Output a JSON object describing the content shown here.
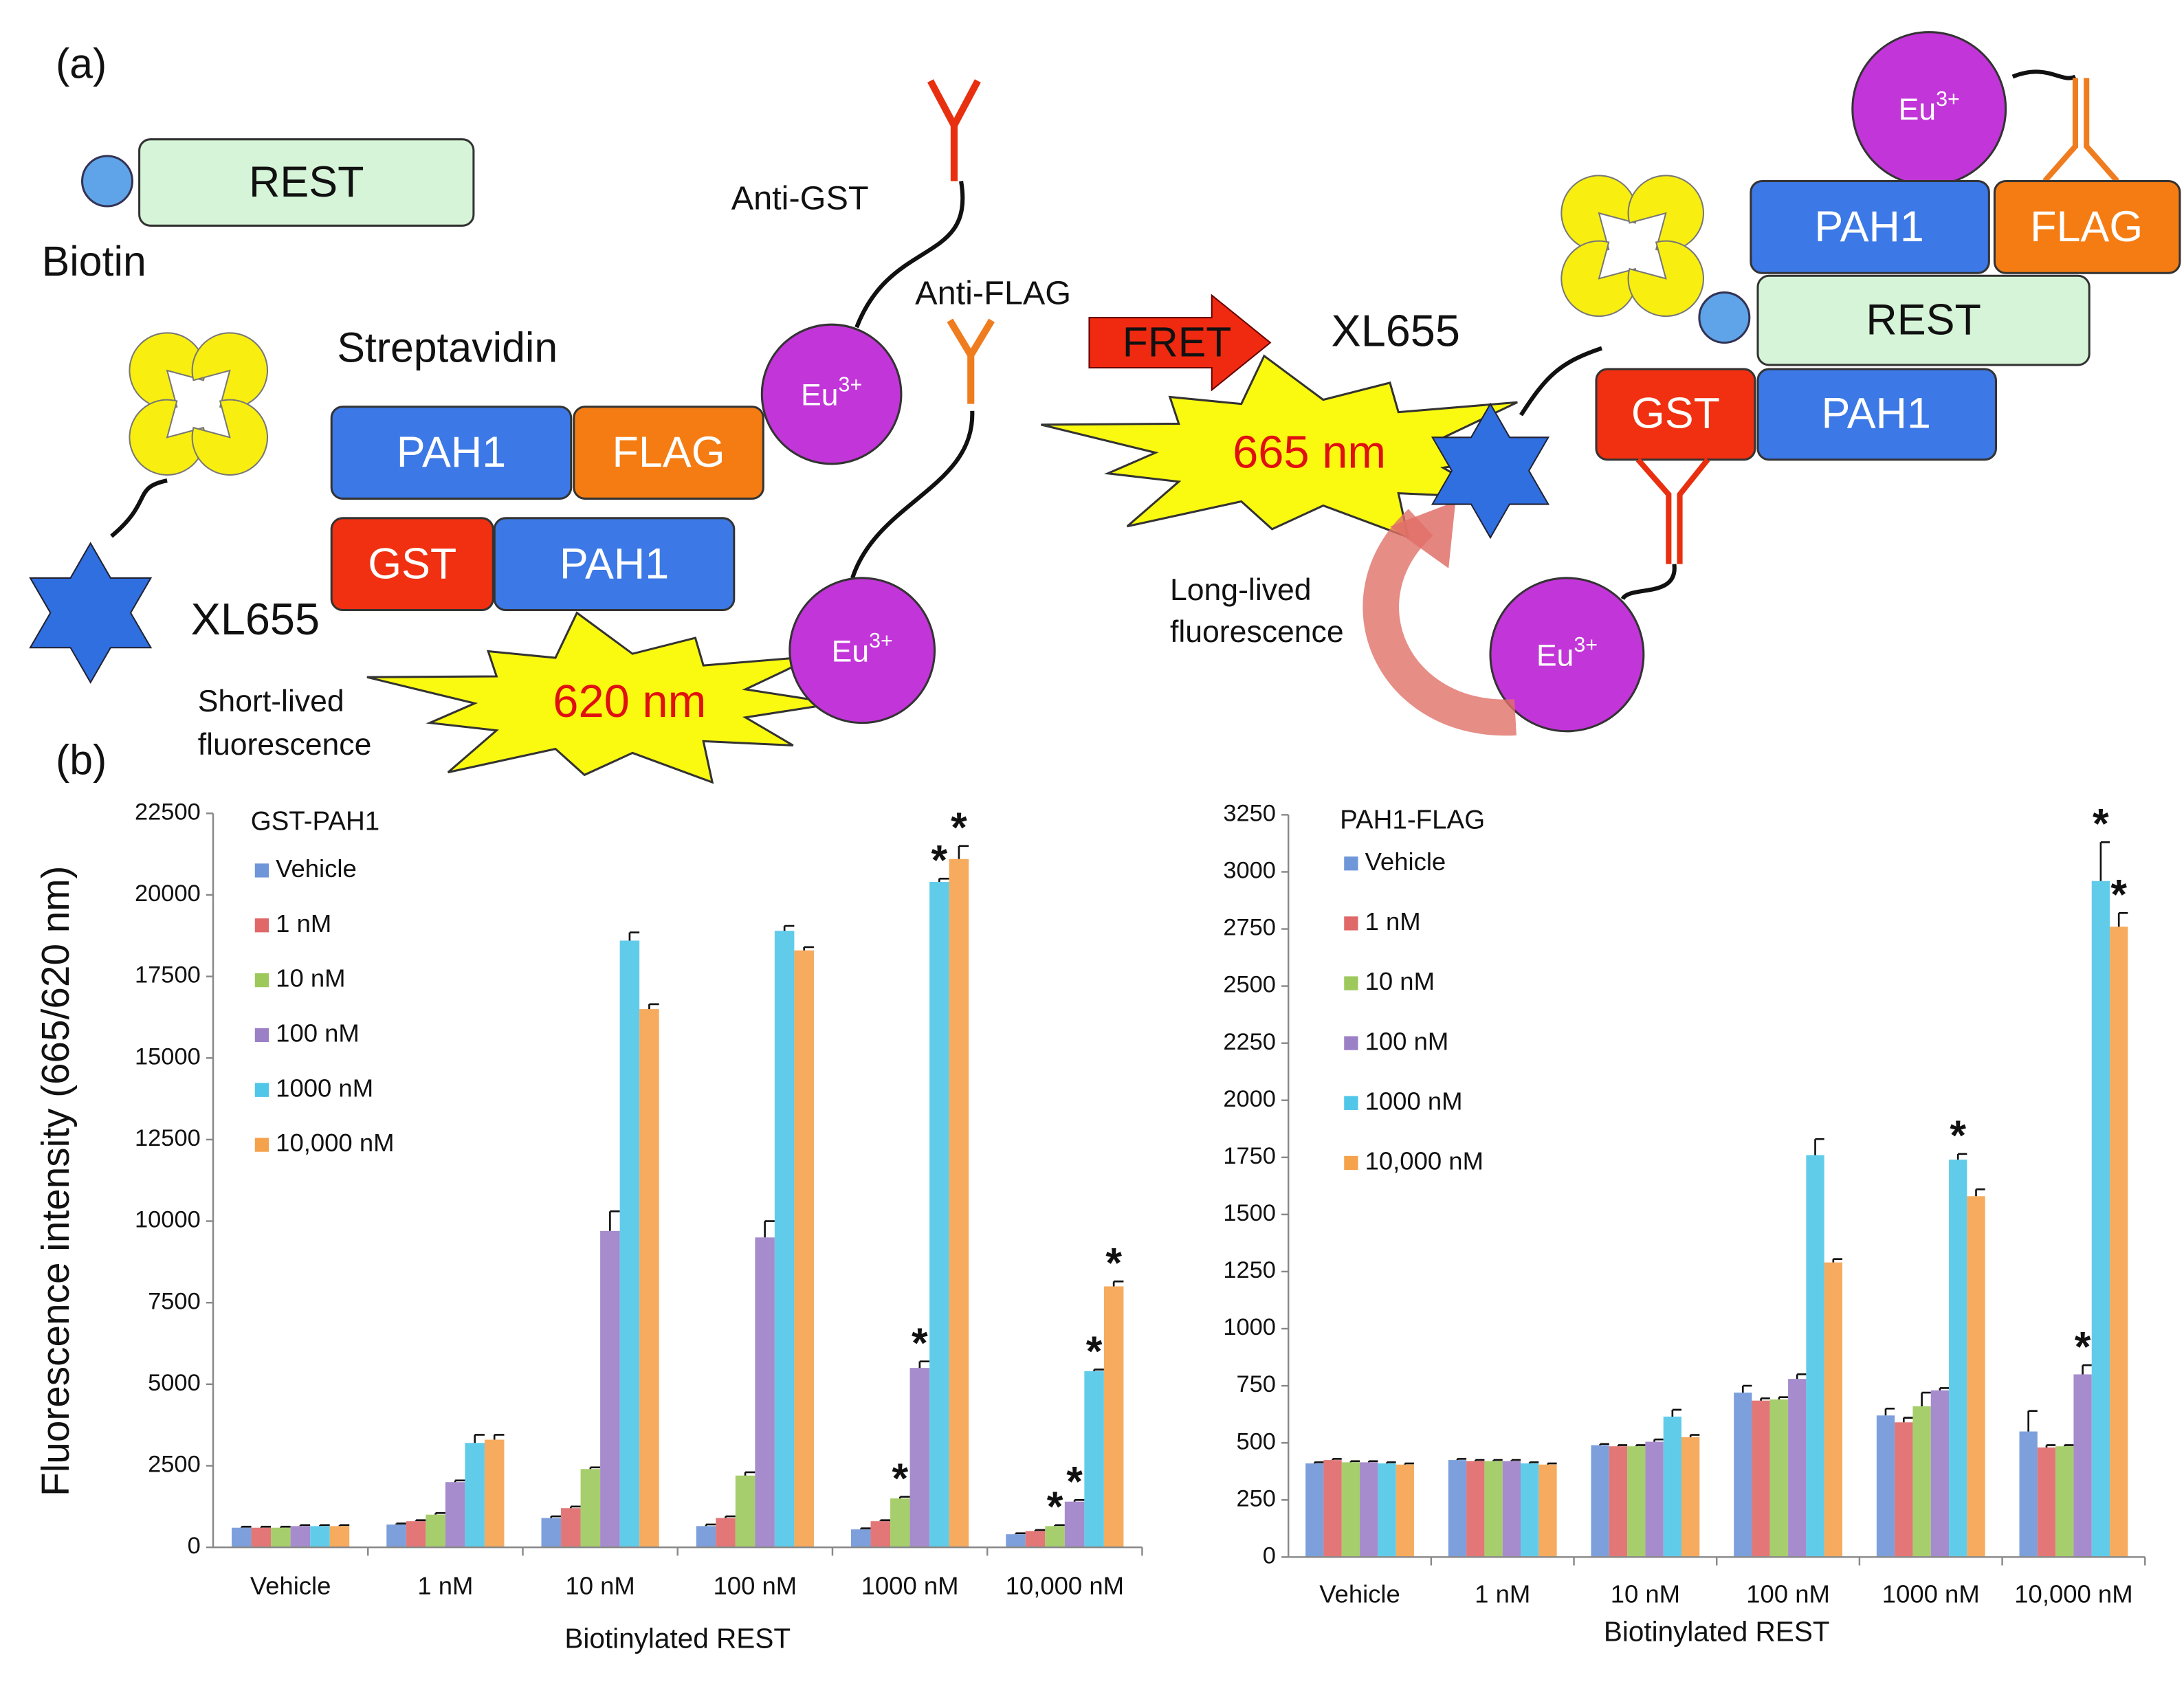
{
  "diagram": {
    "panel_label": "(a)",
    "left": {
      "rest": "REST",
      "biotin": "Biotin",
      "streptavidin": "Streptavidin",
      "pah1_a": "PAH1",
      "flag": "FLAG",
      "gst": "GST",
      "pah1_b": "PAH1",
      "xl655": "XL655",
      "anti_gst": "Anti-GST",
      "anti_flag": "Anti-FLAG",
      "eu_1": {
        "base": "Eu",
        "sup": "3+"
      },
      "eu_2": {
        "base": "Eu",
        "sup": "3+"
      },
      "short_lived": [
        "Short-lived",
        "fluorescence"
      ],
      "emission": "620 nm"
    },
    "fret": "FRET",
    "right": {
      "eu_1": {
        "base": "Eu",
        "sup": "3+"
      },
      "pah1_a": "PAH1",
      "flag": "FLAG",
      "rest": "REST",
      "gst": "GST",
      "pah1_b": "PAH1",
      "xl655": "XL655",
      "emission": "665 nm",
      "long_lived": [
        "Long-lived",
        "fluorescence"
      ],
      "eu_2": {
        "base": "Eu",
        "sup": "3+"
      }
    }
  },
  "panel_b_label": "(b)",
  "chart_data": [
    {
      "type": "bar",
      "title": "GST-PAH1",
      "y_label": "Fluorescence intensity (665/620 nm)",
      "x_label": "Biotinylated REST",
      "categories": [
        "Vehicle",
        "1 nM",
        "10 nM",
        "100 nM",
        "1000 nM",
        "10,000 nM"
      ],
      "ylim": [
        0,
        22500
      ],
      "yticks": [
        0,
        2500,
        5000,
        7500,
        10000,
        12500,
        15000,
        17500,
        20000,
        22500
      ],
      "series": [
        {
          "name": "Vehicle",
          "color": "#6f96d8",
          "values": [
            600,
            700,
            900,
            650,
            550,
            400
          ],
          "errors": [
            30,
            30,
            50,
            50,
            30,
            30
          ],
          "significance": [
            null,
            null,
            null,
            null,
            null,
            null
          ]
        },
        {
          "name": "1 nM",
          "color": "#e06868",
          "values": [
            600,
            800,
            1200,
            900,
            800,
            500
          ],
          "errors": [
            30,
            30,
            50,
            50,
            30,
            30
          ],
          "significance": [
            null,
            null,
            null,
            null,
            null,
            null
          ]
        },
        {
          "name": "10 nM",
          "color": "#9dc95c",
          "values": [
            600,
            1000,
            2400,
            2200,
            1500,
            650
          ],
          "errors": [
            30,
            50,
            50,
            100,
            50,
            30
          ],
          "significance": [
            null,
            null,
            null,
            null,
            "*",
            "*"
          ]
        },
        {
          "name": "100 nM",
          "color": "#9c80c6",
          "values": [
            650,
            2000,
            9700,
            9500,
            5500,
            1400
          ],
          "errors": [
            30,
            50,
            600,
            500,
            200,
            50
          ],
          "significance": [
            null,
            null,
            null,
            null,
            "*",
            "*"
          ]
        },
        {
          "name": "1000 nM",
          "color": "#50c6e8",
          "values": [
            650,
            3200,
            18600,
            18900,
            20400,
            5400
          ],
          "errors": [
            30,
            250,
            250,
            150,
            100,
            50
          ],
          "significance": [
            null,
            null,
            null,
            null,
            "*",
            "*"
          ]
        },
        {
          "name": "10,000 nM",
          "color": "#f5a24c",
          "values": [
            650,
            3300,
            16500,
            18300,
            21100,
            8000
          ],
          "errors": [
            30,
            150,
            150,
            100,
            400,
            150
          ],
          "significance": [
            null,
            null,
            null,
            null,
            "*",
            "*"
          ]
        }
      ]
    },
    {
      "type": "bar",
      "title": "PAH1-FLAG",
      "x_label": "Biotinylated REST",
      "categories": [
        "Vehicle",
        "1 nM",
        "10 nM",
        "100 nM",
        "1000 nM",
        "10,000 nM"
      ],
      "ylim": [
        0,
        3250
      ],
      "yticks": [
        0,
        250,
        500,
        750,
        1000,
        1250,
        1500,
        1750,
        2000,
        2250,
        2500,
        2750,
        3000,
        3250
      ],
      "series": [
        {
          "name": "Vehicle",
          "color": "#6f96d8",
          "values": [
            410,
            425,
            490,
            720,
            620,
            550
          ],
          "errors": [
            5,
            5,
            5,
            30,
            30,
            90
          ],
          "significance": [
            null,
            null,
            null,
            null,
            null,
            null
          ]
        },
        {
          "name": "1 nM",
          "color": "#e06868",
          "values": [
            425,
            420,
            485,
            685,
            590,
            480
          ],
          "errors": [
            5,
            5,
            5,
            10,
            20,
            10
          ],
          "significance": [
            null,
            null,
            null,
            null,
            null,
            null
          ]
        },
        {
          "name": "10 nM",
          "color": "#9dc95c",
          "values": [
            415,
            420,
            485,
            690,
            660,
            485
          ],
          "errors": [
            5,
            5,
            5,
            10,
            60,
            5
          ],
          "significance": [
            null,
            null,
            null,
            null,
            null,
            null
          ]
        },
        {
          "name": "100 nM",
          "color": "#9c80c6",
          "values": [
            415,
            420,
            505,
            780,
            730,
            800
          ],
          "errors": [
            5,
            5,
            10,
            20,
            10,
            40
          ],
          "significance": [
            null,
            null,
            null,
            null,
            null,
            "*"
          ]
        },
        {
          "name": "1000 nM",
          "color": "#50c6e8",
          "values": [
            410,
            410,
            615,
            1760,
            1740,
            2960
          ],
          "errors": [
            5,
            5,
            30,
            70,
            25,
            170
          ],
          "significance": [
            null,
            null,
            null,
            null,
            "*",
            "*"
          ]
        },
        {
          "name": "10,000 nM",
          "color": "#f5a24c",
          "values": [
            405,
            405,
            525,
            1290,
            1580,
            2760
          ],
          "errors": [
            5,
            5,
            10,
            15,
            30,
            60
          ],
          "significance": [
            null,
            null,
            null,
            null,
            null,
            "*"
          ]
        }
      ]
    }
  ]
}
